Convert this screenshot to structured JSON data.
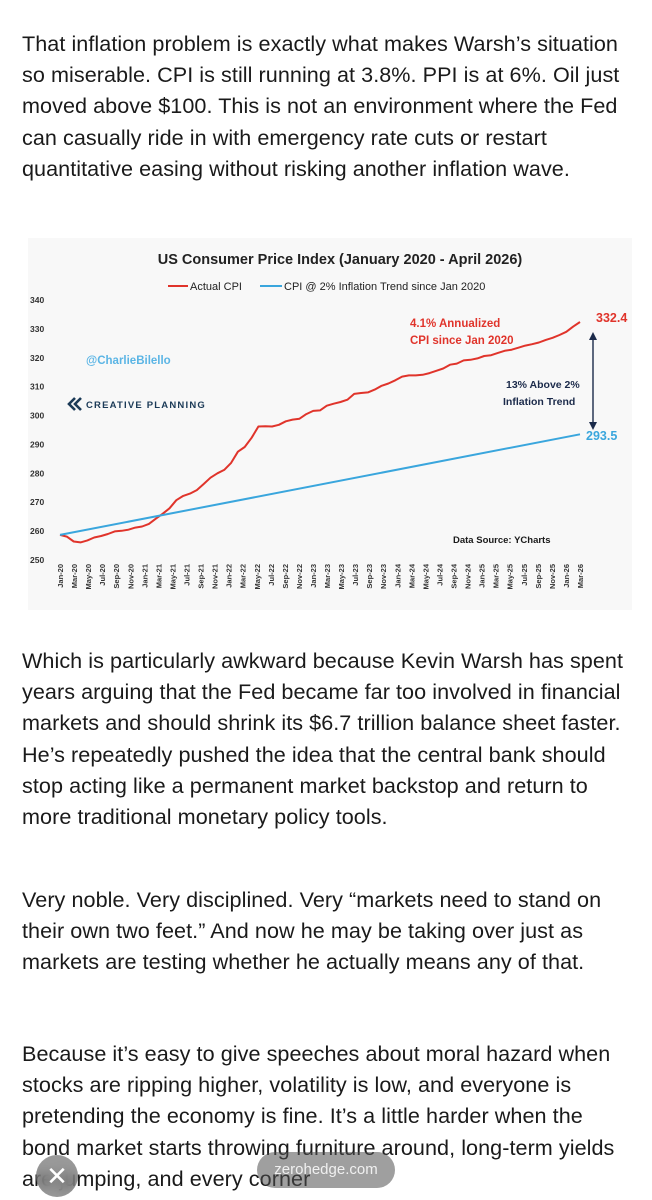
{
  "article": {
    "paragraphs": [
      "That inflation problem is exactly what makes Warsh’s situation so miserable. CPI is still running at 3.8%. PPI is at 6%. Oil just moved above $100. This is not an environment where the Fed can casually ride in with emergency rate cuts or restart quantitative easing without risking another inflation wave.",
      "Which is particularly awkward because Kevin Warsh has spent years arguing that the Fed became far too involved in financial markets and should shrink its $6.7 trillion balance sheet faster. He’s repeatedly pushed the idea that the central bank should stop acting like a permanent market backstop and return to more traditional monetary policy tools.",
      "Very noble. Very disciplined. Very “markets need to stand on their own two feet.” And now he may be taking over just as markets are testing whether he actually means any of that.",
      "Because it’s easy to give speeches about moral hazard when stocks are ripping higher, volatility is low, and everyone is pretending the economy is fine. It’s a little harder when the bond market starts throwing furniture around, long-term yields are jumping, and every corner"
    ]
  },
  "chart_data": {
    "type": "line",
    "title": "US Consumer Price Index (January 2020 -  April 2026)",
    "ylim": [
      250,
      340
    ],
    "yticks": [
      "340",
      "330",
      "320",
      "310",
      "300",
      "290",
      "280",
      "270",
      "260",
      "250"
    ],
    "xticks": [
      "Jan-20",
      "Mar-20",
      "May-20",
      "Jul-20",
      "Sep-20",
      "Nov-20",
      "Jan-21",
      "Mar-21",
      "May-21",
      "Jul-21",
      "Sep-21",
      "Nov-21",
      "Jan-22",
      "Mar-22",
      "May-22",
      "Jul-22",
      "Sep-22",
      "Nov-22",
      "Jan-23",
      "Mar-23",
      "May-23",
      "Jul-23",
      "Sep-23",
      "Nov-23",
      "Jan-24",
      "Mar-24",
      "May-24",
      "Jul-24",
      "Sep-24",
      "Nov-24",
      "Jan-25",
      "Mar-25",
      "May-25",
      "Jul-25",
      "Sep-25",
      "Nov-25",
      "Jan-26",
      "Mar-26"
    ],
    "series": [
      {
        "name": "Actual CPI",
        "color": "#e0342b",
        "values": [
          258.7,
          258.1,
          256.4,
          256.1,
          256.8,
          257.8,
          258.3,
          259.0,
          259.9,
          260.1,
          260.5,
          261.2,
          261.6,
          262.5,
          264.3,
          266.0,
          267.9,
          270.7,
          272.2,
          273.0,
          274.2,
          276.3,
          278.5,
          280.0,
          281.2,
          283.6,
          287.5,
          289.1,
          292.3,
          296.2,
          296.3,
          296.2,
          296.8,
          298.0,
          298.6,
          298.9,
          300.5,
          301.6,
          301.8,
          303.4,
          304.1,
          304.7,
          305.5,
          307.5,
          307.8,
          308.0,
          309.0,
          310.3,
          311.1,
          312.2,
          313.5,
          313.9,
          313.9,
          314.1,
          314.7,
          315.5,
          316.3,
          317.6,
          318.0,
          319.1,
          319.3,
          319.8,
          320.6,
          320.9,
          321.7,
          322.4,
          322.8,
          323.5,
          324.2,
          324.7,
          325.3,
          326.2,
          326.9,
          327.9,
          329.0,
          330.8,
          332.4
        ]
      },
      {
        "name": "CPI @ 2% Inflation Trend since Jan 2020",
        "color": "#3aa6dd",
        "values": [
          258.7,
          293.5
        ]
      }
    ],
    "legend": [
      "Actual CPI",
      "CPI @ 2% Inflation Trend since Jan 2020"
    ],
    "legend_placement": "top",
    "annotations": {
      "annualized_line1": "4.1% Annualized",
      "annualized_line2": "CPI since Jan 2020",
      "end_actual": "332.4",
      "end_trend": "293.5",
      "above_line1": "13% Above 2%",
      "above_line2": "Inflation Trend",
      "handle": "@CharlieBilello",
      "logo": "CREATIVE PLANNING",
      "source": "Data Source: YCharts"
    },
    "grid": false
  },
  "overlay": {
    "close_label": "✕",
    "url": "zerohedge.com"
  },
  "colors": {
    "red": "#e0342b",
    "blue": "#3aa6dd",
    "annot_red": "#e0342b",
    "logo_blue": "#1b3a57"
  }
}
